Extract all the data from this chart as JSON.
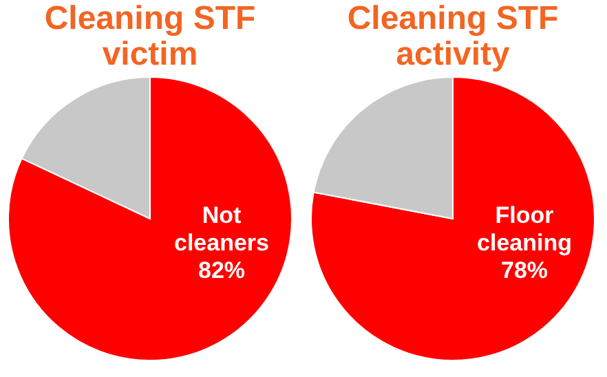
{
  "chart_data": [
    {
      "type": "pie",
      "title": "Cleaning STF victim",
      "categories": [
        "Not cleaners",
        null
      ],
      "values": [
        82,
        18
      ],
      "colors": [
        "#fe0000",
        "#c8c8c8"
      ],
      "value_labels": [
        "82%",
        null
      ]
    },
    {
      "type": "pie",
      "title": "Cleaning STF activity",
      "categories": [
        "Floor cleaning",
        null
      ],
      "values": [
        78,
        22
      ],
      "colors": [
        "#fe0000",
        "#c8c8c8"
      ],
      "value_labels": [
        "78%",
        null
      ]
    }
  ]
}
